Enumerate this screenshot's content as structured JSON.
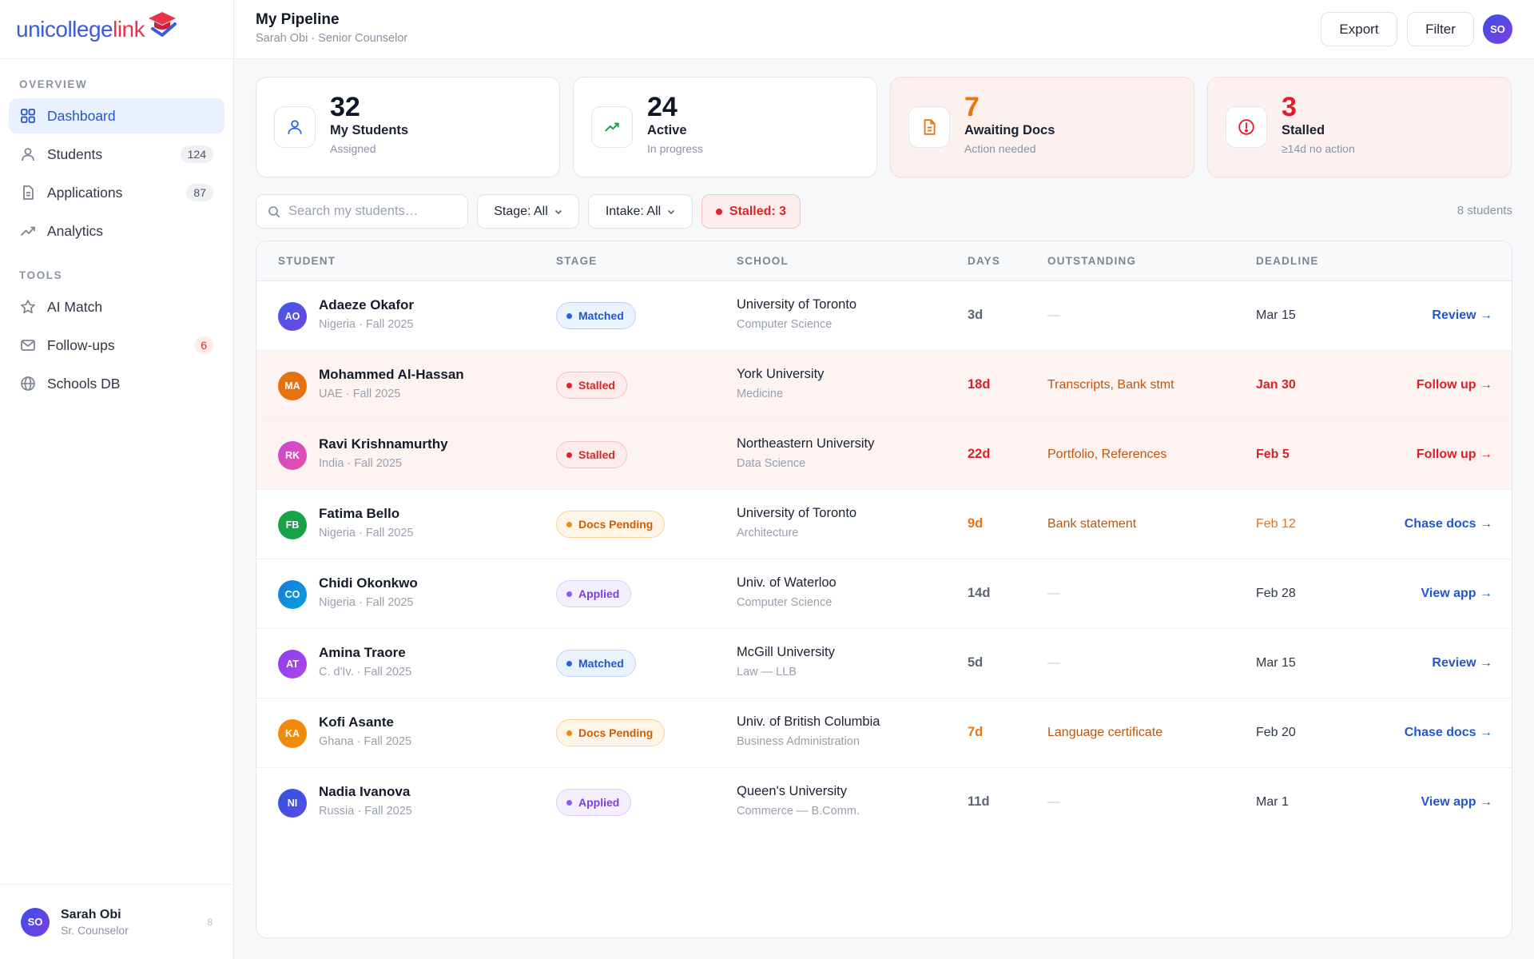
{
  "brand": {
    "logo_main": "unicollege",
    "logo_accent": "link"
  },
  "sidebar": {
    "section_overview": "OVERVIEW",
    "section_tools": "TOOLS",
    "items": [
      {
        "label": "Dashboard",
        "icon": "grid-icon",
        "count": ""
      },
      {
        "label": "Students",
        "icon": "user-icon",
        "count": "124"
      },
      {
        "label": "Applications",
        "icon": "document-icon",
        "count": "87"
      },
      {
        "label": "Analytics",
        "icon": "trend-icon",
        "count": ""
      },
      {
        "label": "AI Match",
        "icon": "star-icon",
        "count": ""
      },
      {
        "label": "Follow-ups",
        "icon": "mail-icon",
        "count": "6"
      },
      {
        "label": "Schools DB",
        "icon": "globe-icon",
        "count": ""
      }
    ],
    "profile": {
      "initials": "SO",
      "name": "Sarah Obi",
      "role": "Sr. Counselor",
      "more": "8"
    }
  },
  "header": {
    "title": "My Pipeline",
    "subtitle": "Sarah Obi · Senior Counselor",
    "export_label": "Export",
    "filter_label": "Filter",
    "avatar_initials": "SO"
  },
  "stats": [
    {
      "value": "32",
      "label": "My Students",
      "sub": "Assigned"
    },
    {
      "value": "24",
      "label": "Active",
      "sub": "In progress"
    },
    {
      "value": "7",
      "label": "Awaiting Docs",
      "sub": "Action needed"
    },
    {
      "value": "3",
      "label": "Stalled",
      "sub": "≥14d no action"
    }
  ],
  "filters": {
    "search_placeholder": "Search my students…",
    "stage": "Stage: All",
    "intake": "Intake: All",
    "stalled": "Stalled: 3",
    "count": "8 students"
  },
  "table": {
    "columns": [
      "STUDENT",
      "STAGE",
      "SCHOOL",
      "DAYS",
      "OUTSTANDING",
      "DEADLINE"
    ],
    "rows": [
      {
        "initials": "AO",
        "name": "Adaeze Okafor",
        "meta": "Nigeria · Fall 2025",
        "stage": "Matched",
        "school": "University of Toronto",
        "program": "Computer Science",
        "days": "3d",
        "outstanding": "—",
        "deadline": "Mar 15",
        "action": "Review →"
      },
      {
        "initials": "MA",
        "name": "Mohammed Al-Hassan",
        "meta": "UAE · Fall 2025",
        "stage": "Stalled",
        "school": "York University",
        "program": "Medicine",
        "days": "18d",
        "outstanding": "Transcripts, Bank stmt",
        "deadline": "Jan 30",
        "action": "Follow up →"
      },
      {
        "initials": "RK",
        "name": "Ravi Krishnamurthy",
        "meta": "India · Fall 2025",
        "stage": "Stalled",
        "school": "Northeastern University",
        "program": "Data Science",
        "days": "22d",
        "outstanding": "Portfolio, References",
        "deadline": "Feb 5",
        "action": "Follow up →"
      },
      {
        "initials": "FB",
        "name": "Fatima Bello",
        "meta": "Nigeria · Fall 2025",
        "stage": "Docs Pending",
        "school": "University of Toronto",
        "program": "Architecture",
        "days": "9d",
        "outstanding": "Bank statement",
        "deadline": "Feb 12",
        "action": "Chase docs →"
      },
      {
        "initials": "CO",
        "name": "Chidi Okonkwo",
        "meta": "Nigeria · Fall 2025",
        "stage": "Applied",
        "school": "Univ. of Waterloo",
        "program": "Computer Science",
        "days": "14d",
        "outstanding": "—",
        "deadline": "Feb 28",
        "action": "View app →"
      },
      {
        "initials": "AT",
        "name": "Amina Traore",
        "meta": "C. d'Iv. · Fall 2025",
        "stage": "Matched",
        "school": "McGill University",
        "program": "Law — LLB",
        "days": "5d",
        "outstanding": "—",
        "deadline": "Mar 15",
        "action": "Review →"
      },
      {
        "initials": "KA",
        "name": "Kofi Asante",
        "meta": "Ghana · Fall 2025",
        "stage": "Docs Pending",
        "school": "Univ. of British Columbia",
        "program": "Business Administration",
        "days": "7d",
        "outstanding": "Language certificate",
        "deadline": "Feb 20",
        "action": "Chase docs →"
      },
      {
        "initials": "NI",
        "name": "Nadia Ivanova",
        "meta": "Russia · Fall 2025",
        "stage": "Applied",
        "school": "Queen's University",
        "program": "Commerce — B.Comm.",
        "days": "11d",
        "outstanding": "—",
        "deadline": "Mar 1",
        "action": "View app →"
      }
    ]
  },
  "colors": {
    "accent": "#2356cc",
    "danger": "#dc1f26",
    "warning": "#ea7411",
    "purple": "#7a3fd8"
  }
}
